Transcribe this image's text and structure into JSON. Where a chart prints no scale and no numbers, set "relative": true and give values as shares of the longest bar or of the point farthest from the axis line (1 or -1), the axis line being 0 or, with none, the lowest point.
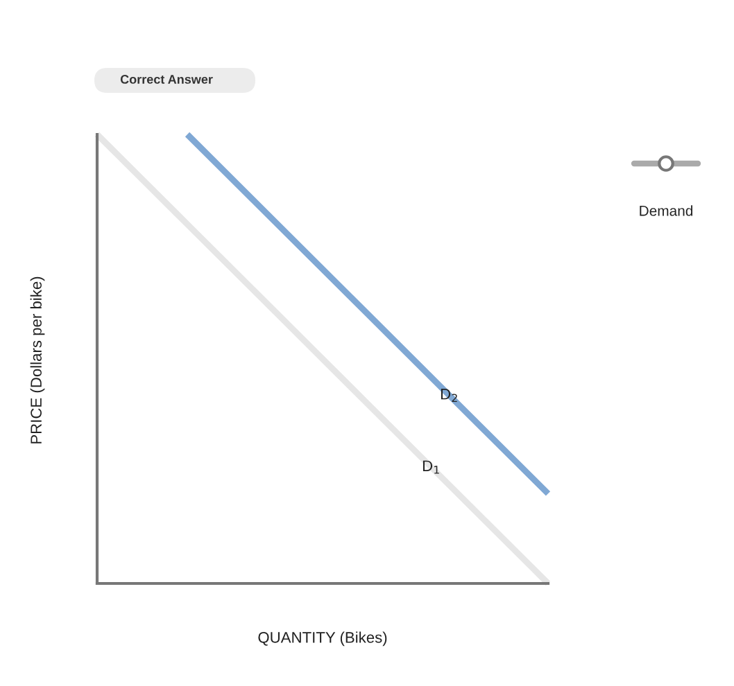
{
  "chart_data": {
    "type": "line",
    "relative": true,
    "xlabel": "QUANTITY (Bikes)",
    "ylabel": "PRICE (Dollars per bike)",
    "annotations": [
      "Correct Answer",
      "Demand"
    ],
    "categories": [
      null,
      null,
      null,
      null,
      null,
      null
    ],
    "series": [
      {
        "name": "D$_{1}$",
        "color": "#e6e6e6",
        "values": [
          1,
          0.8,
          0.6,
          0.4,
          0.2,
          0
        ]
      },
      {
        "name": "D$_{2}$",
        "color": "#80a8d4",
        "values": [
          null,
          1,
          0.8,
          0.6,
          0.4,
          0.2
        ]
      }
    ]
  }
}
